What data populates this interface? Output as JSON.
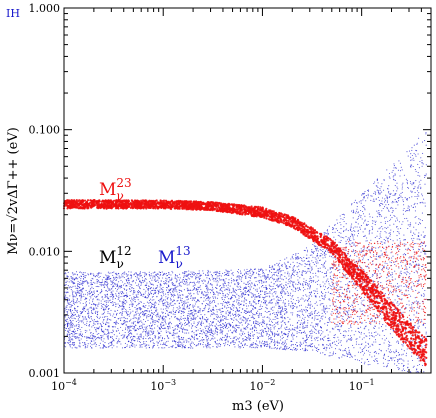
{
  "chart_data": {
    "type": "scatter",
    "corner_tag": "IH",
    "xlabel": "m3 (eV)",
    "ylabel": "Mν=√2vΔΓ++ (eV)",
    "x_scale": "log",
    "y_scale": "log",
    "xlim": [
      0.0001,
      0.5
    ],
    "ylim": [
      0.001,
      1.0
    ],
    "x_ticks": [
      {
        "value": 0.0001,
        "label": "10",
        "exp": "−4"
      },
      {
        "value": 0.001,
        "label": "10",
        "exp": "−3"
      },
      {
        "value": 0.01,
        "label": "10",
        "exp": "−2"
      },
      {
        "value": 0.1,
        "label": "10",
        "exp": "−1"
      }
    ],
    "y_ticks": [
      {
        "value": 0.001,
        "label": "0.001"
      },
      {
        "value": 0.01,
        "label": "0.010"
      },
      {
        "value": 0.1,
        "label": "0.100"
      },
      {
        "value": 1.0,
        "label": "1.000"
      }
    ],
    "series": [
      {
        "name": "M_ν^12",
        "label_main": "M",
        "label_sub": "ν",
        "label_sup": "12",
        "color": "#000000",
        "band": [
          {
            "x": 0.0001,
            "y_min": 0.0016,
            "y_max": 0.0068
          },
          {
            "x": 0.001,
            "y_min": 0.0016,
            "y_max": 0.0068
          },
          {
            "x": 0.01,
            "y_min": 0.0016,
            "y_max": 0.0072
          },
          {
            "x": 0.03,
            "y_min": 0.0015,
            "y_max": 0.011
          },
          {
            "x": 0.1,
            "y_min": 0.0012,
            "y_max": 0.03
          },
          {
            "x": 0.3,
            "y_min": 0.001,
            "y_max": 0.07
          },
          {
            "x": 0.45,
            "y_min": 0.001,
            "y_max": 0.1
          }
        ]
      },
      {
        "name": "M_ν^13",
        "label_main": "M",
        "label_sub": "ν",
        "label_sup": "13",
        "color": "#1a1acc",
        "band": [
          {
            "x": 0.0001,
            "y_min": 0.0016,
            "y_max": 0.0068
          },
          {
            "x": 0.001,
            "y_min": 0.0016,
            "y_max": 0.0068
          },
          {
            "x": 0.01,
            "y_min": 0.0016,
            "y_max": 0.0072
          },
          {
            "x": 0.03,
            "y_min": 0.0015,
            "y_max": 0.011
          },
          {
            "x": 0.1,
            "y_min": 0.0012,
            "y_max": 0.03
          },
          {
            "x": 0.3,
            "y_min": 0.001,
            "y_max": 0.07
          },
          {
            "x": 0.45,
            "y_min": 0.001,
            "y_max": 0.1
          }
        ]
      },
      {
        "name": "M_ν^23",
        "label_main": "M",
        "label_sub": "ν",
        "label_sup": "23",
        "color": "#ee1111",
        "band": [
          {
            "x": 0.0001,
            "y_min": 0.0225,
            "y_max": 0.0265
          },
          {
            "x": 0.001,
            "y_min": 0.0224,
            "y_max": 0.0262
          },
          {
            "x": 0.003,
            "y_min": 0.0218,
            "y_max": 0.0255
          },
          {
            "x": 0.01,
            "y_min": 0.019,
            "y_max": 0.023
          },
          {
            "x": 0.02,
            "y_min": 0.0158,
            "y_max": 0.0195
          },
          {
            "x": 0.05,
            "y_min": 0.0095,
            "y_max": 0.0125
          },
          {
            "x": 0.1,
            "y_min": 0.0048,
            "y_max": 0.007
          },
          {
            "x": 0.2,
            "y_min": 0.0023,
            "y_max": 0.0038
          },
          {
            "x": 0.45,
            "y_min": 0.0011,
            "y_max": 0.0019
          }
        ],
        "spread_region": {
          "x_min": 0.05,
          "x_max": 0.45,
          "y_min": 0.0025,
          "y_max": 0.012
        }
      }
    ]
  }
}
